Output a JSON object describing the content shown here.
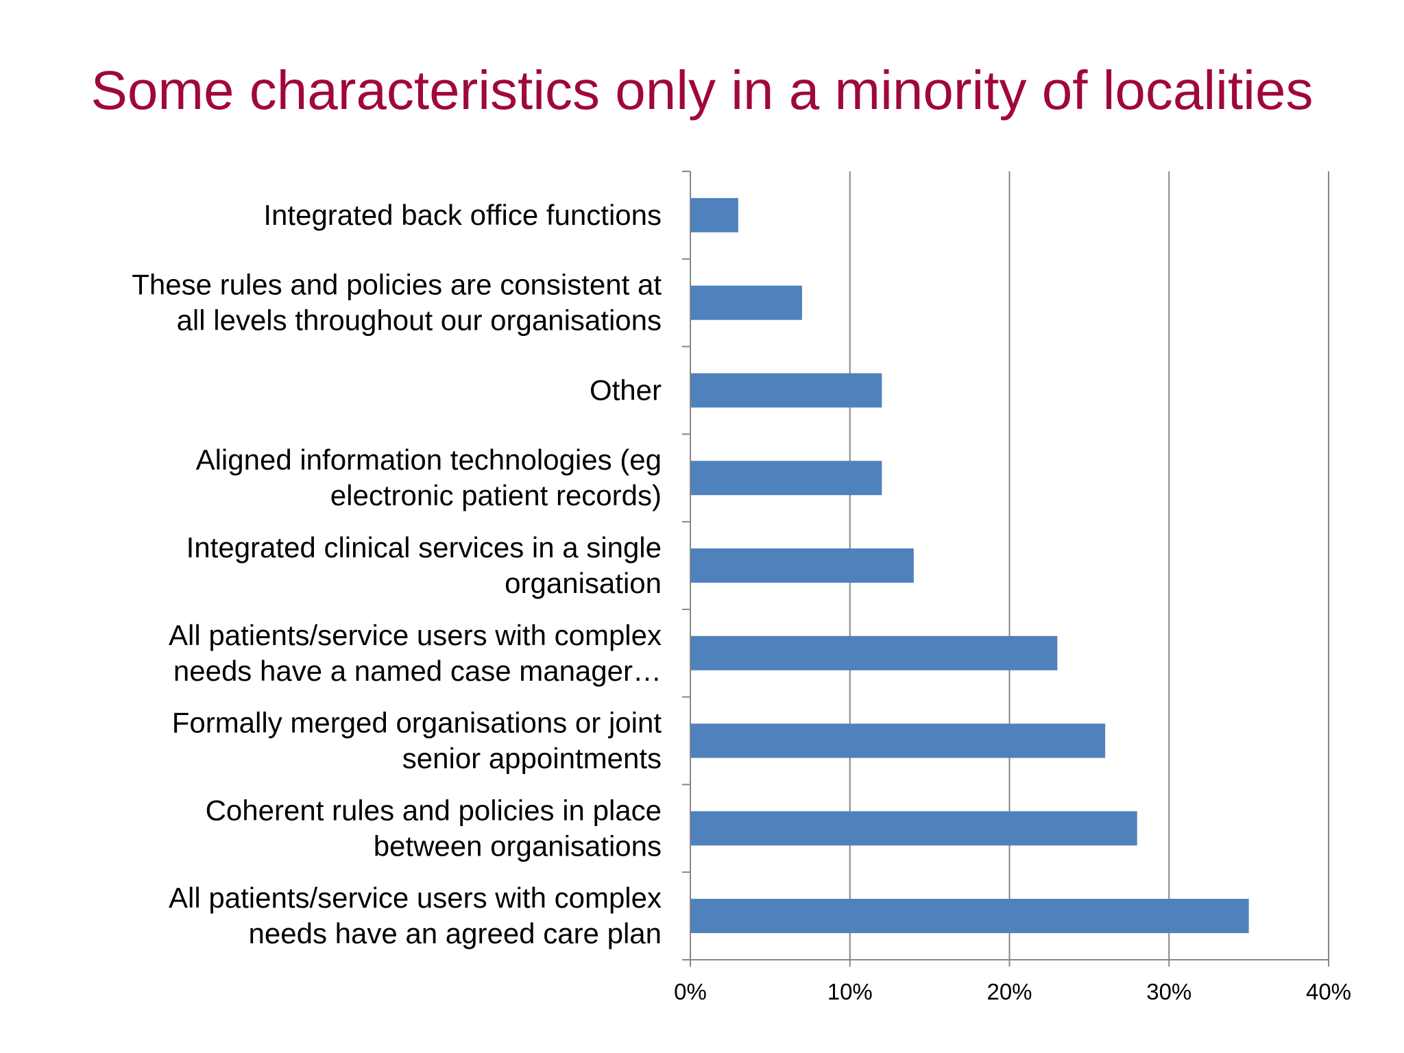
{
  "chart_data": {
    "type": "bar",
    "orientation": "horizontal",
    "title": "Some characteristics only in a minority of localities",
    "categories": [
      [
        "Integrated back office functions"
      ],
      [
        "These rules and policies are consistent at",
        "all levels throughout our organisations"
      ],
      [
        "Other"
      ],
      [
        "Aligned information technologies (eg",
        "electronic patient records)"
      ],
      [
        "Integrated clinical services in a single",
        "organisation"
      ],
      [
        "All patients/service users with complex",
        "needs have a named case manager…"
      ],
      [
        "Formally merged organisations or joint",
        "senior appointments"
      ],
      [
        "Coherent rules and policies in place",
        "between organisations"
      ],
      [
        "All patients/service users with complex",
        "needs have an agreed care plan"
      ]
    ],
    "values": [
      3,
      7,
      12,
      12,
      14,
      23,
      26,
      28,
      35
    ],
    "xlim": [
      0,
      40
    ],
    "xticks": [
      0,
      10,
      20,
      30,
      40
    ],
    "xtick_labels": [
      "0%",
      "10%",
      "20%",
      "30%",
      "40%"
    ],
    "xlabel": "",
    "ylabel": "",
    "grid": "vertical",
    "legend": "none",
    "colors": {
      "bar": "#4f81bd",
      "grid": "#868686",
      "title": "#a0073c"
    }
  }
}
